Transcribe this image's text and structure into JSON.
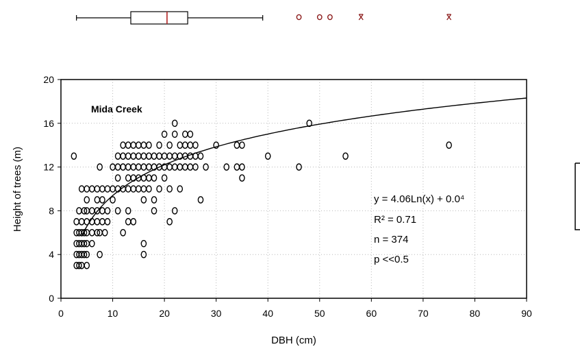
{
  "chart_data": {
    "type": "scatter",
    "xlabel": "DBH (cm)",
    "ylabel": "Height of trees (m)",
    "xlim": [
      0,
      90
    ],
    "ylim": [
      0,
      20
    ],
    "x_ticks": [
      0,
      10,
      20,
      30,
      40,
      50,
      60,
      70,
      80,
      90
    ],
    "y_ticks": [
      0,
      4,
      8,
      12,
      16,
      20
    ],
    "grid": true,
    "site_label": "Mida Creek",
    "annotations": [
      "y = 4.06Ln(x) + 0.0⁴",
      "R² = 0.71",
      "n = 374",
      "p <<0.5"
    ],
    "trendline": {
      "type": "logarithmic",
      "a": 4.06,
      "b": 0.04,
      "x_range": [
        4,
        90
      ]
    },
    "points": [
      [
        2.5,
        13
      ],
      [
        3,
        3
      ],
      [
        3,
        4
      ],
      [
        3,
        5
      ],
      [
        3,
        6
      ],
      [
        3,
        7
      ],
      [
        3.5,
        3
      ],
      [
        3.5,
        4
      ],
      [
        3.5,
        5
      ],
      [
        3.5,
        6
      ],
      [
        3.5,
        8
      ],
      [
        4,
        3
      ],
      [
        4,
        4
      ],
      [
        4,
        5
      ],
      [
        4,
        6
      ],
      [
        4,
        7
      ],
      [
        4,
        10
      ],
      [
        4.5,
        4
      ],
      [
        4.5,
        5
      ],
      [
        4.5,
        6
      ],
      [
        4.5,
        8
      ],
      [
        5,
        3
      ],
      [
        5,
        4
      ],
      [
        5,
        5
      ],
      [
        5,
        6
      ],
      [
        5,
        7
      ],
      [
        5,
        8
      ],
      [
        5,
        9
      ],
      [
        5,
        10
      ],
      [
        6,
        5
      ],
      [
        6,
        6
      ],
      [
        6,
        7
      ],
      [
        6,
        8
      ],
      [
        6,
        10
      ],
      [
        7,
        6
      ],
      [
        7,
        7
      ],
      [
        7,
        8
      ],
      [
        7,
        9
      ],
      [
        7,
        10
      ],
      [
        7.5,
        4
      ],
      [
        7.5,
        6
      ],
      [
        7.5,
        12
      ],
      [
        8,
        7
      ],
      [
        8,
        8
      ],
      [
        8,
        9
      ],
      [
        8,
        10
      ],
      [
        8.5,
        6
      ],
      [
        9,
        7
      ],
      [
        9,
        8
      ],
      [
        9,
        10
      ],
      [
        10,
        9
      ],
      [
        10,
        10
      ],
      [
        10,
        12
      ],
      [
        11,
        8
      ],
      [
        11,
        10
      ],
      [
        11,
        11
      ],
      [
        11,
        12
      ],
      [
        11,
        13
      ],
      [
        12,
        6
      ],
      [
        12,
        10
      ],
      [
        12,
        12
      ],
      [
        12,
        13
      ],
      [
        12,
        14
      ],
      [
        13,
        7
      ],
      [
        13,
        8
      ],
      [
        13,
        10
      ],
      [
        13,
        11
      ],
      [
        13,
        12
      ],
      [
        13,
        13
      ],
      [
        13,
        14
      ],
      [
        14,
        7
      ],
      [
        14,
        10
      ],
      [
        14,
        11
      ],
      [
        14,
        12
      ],
      [
        14,
        13
      ],
      [
        14,
        14
      ],
      [
        15,
        10
      ],
      [
        15,
        11
      ],
      [
        15,
        12
      ],
      [
        15,
        13
      ],
      [
        15,
        14
      ],
      [
        16,
        4
      ],
      [
        16,
        5
      ],
      [
        16,
        9
      ],
      [
        16,
        10
      ],
      [
        16,
        11
      ],
      [
        16,
        12
      ],
      [
        16,
        13
      ],
      [
        16,
        14
      ],
      [
        17,
        10
      ],
      [
        17,
        11
      ],
      [
        17,
        12
      ],
      [
        17,
        13
      ],
      [
        17,
        14
      ],
      [
        18,
        8
      ],
      [
        18,
        9
      ],
      [
        18,
        11
      ],
      [
        18,
        12
      ],
      [
        18,
        13
      ],
      [
        19,
        10
      ],
      [
        19,
        12
      ],
      [
        19,
        13
      ],
      [
        19,
        14
      ],
      [
        20,
        11
      ],
      [
        20,
        12
      ],
      [
        20,
        13
      ],
      [
        20,
        15
      ],
      [
        21,
        7
      ],
      [
        21,
        10
      ],
      [
        21,
        12
      ],
      [
        21,
        13
      ],
      [
        21,
        14
      ],
      [
        22,
        8
      ],
      [
        22,
        12
      ],
      [
        22,
        13
      ],
      [
        22,
        15
      ],
      [
        22,
        16
      ],
      [
        23,
        10
      ],
      [
        23,
        12
      ],
      [
        23,
        13
      ],
      [
        23,
        14
      ],
      [
        24,
        12
      ],
      [
        24,
        13
      ],
      [
        24,
        14
      ],
      [
        24,
        15
      ],
      [
        25,
        12
      ],
      [
        25,
        13
      ],
      [
        25,
        14
      ],
      [
        25,
        15
      ],
      [
        26,
        12
      ],
      [
        26,
        13
      ],
      [
        26,
        14
      ],
      [
        27,
        9
      ],
      [
        27,
        13
      ],
      [
        28,
        12
      ],
      [
        30,
        14
      ],
      [
        32,
        12
      ],
      [
        34,
        12
      ],
      [
        34,
        14
      ],
      [
        35,
        11
      ],
      [
        35,
        12
      ],
      [
        35,
        14
      ],
      [
        40,
        13
      ],
      [
        46,
        12
      ],
      [
        48,
        16
      ],
      [
        55,
        13
      ],
      [
        75,
        14
      ]
    ],
    "boxplot": {
      "whisker_low": 3,
      "q1": 13.5,
      "median": 20.5,
      "q3": 24.5,
      "whisker_high": 39,
      "outliers": [
        46,
        50,
        52
      ],
      "extremes": [
        58,
        75
      ]
    }
  }
}
